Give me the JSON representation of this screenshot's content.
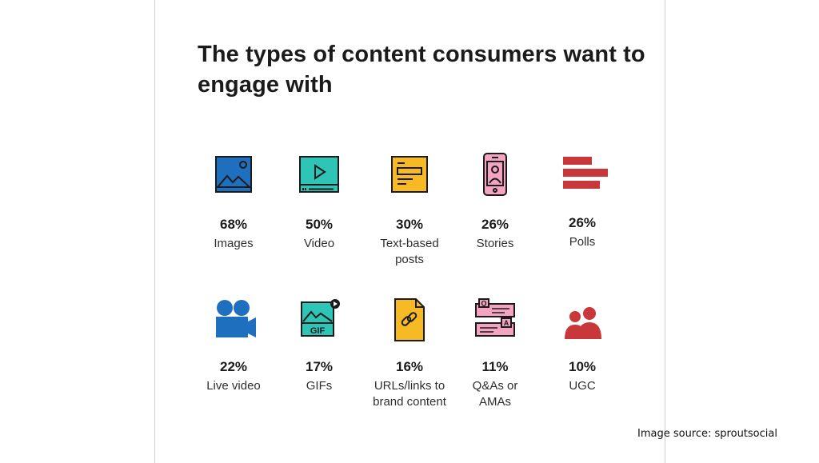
{
  "chart_data": {
    "type": "table",
    "title": "The types of content consumers want to engage with",
    "categories": [
      "Images",
      "Video",
      "Text-based posts",
      "Stories",
      "Polls",
      "Live video",
      "GIFs",
      "URLs/links to brand content",
      "Q&As or AMAs",
      "UGC"
    ],
    "values": [
      68,
      50,
      30,
      26,
      26,
      22,
      17,
      16,
      11,
      10
    ],
    "items": [
      {
        "value": "68%",
        "label": "Images",
        "icon": "image-icon",
        "color": "#1f6fbf"
      },
      {
        "value": "50%",
        "label": "Video",
        "icon": "video-player-icon",
        "color": "#2ec4b6"
      },
      {
        "value": "30%",
        "label": "Text-based posts",
        "icon": "text-post-icon",
        "color": "#f7b924"
      },
      {
        "value": "26%",
        "label": "Stories",
        "icon": "phone-story-icon",
        "color": "#f4a3c0"
      },
      {
        "value": "26%",
        "label": "Polls",
        "icon": "poll-bars-icon",
        "color": "#c8373a"
      },
      {
        "value": "22%",
        "label": "Live video",
        "icon": "video-camera-icon",
        "color": "#1f6fbf"
      },
      {
        "value": "17%",
        "label": "GIFs",
        "icon": "gif-icon",
        "color": "#2ec4b6"
      },
      {
        "value": "16%",
        "label": "URLs/links to brand content",
        "icon": "link-document-icon",
        "color": "#f7b924"
      },
      {
        "value": "11%",
        "label": "Q&As or AMAs",
        "icon": "qa-bubbles-icon",
        "color": "#f4a3c0"
      },
      {
        "value": "10%",
        "label": "UGC",
        "icon": "users-icon",
        "color": "#c8373a"
      }
    ]
  },
  "source": "Image source: sproutsocial"
}
